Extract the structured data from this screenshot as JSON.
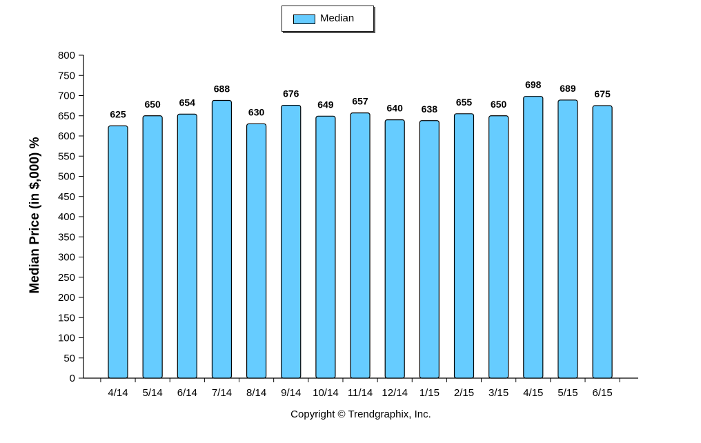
{
  "chart_data": {
    "type": "bar",
    "categories": [
      "4/14",
      "5/14",
      "6/14",
      "7/14",
      "8/14",
      "9/14",
      "10/14",
      "11/14",
      "12/14",
      "1/15",
      "2/15",
      "3/15",
      "4/15",
      "5/15",
      "6/15"
    ],
    "series": [
      {
        "name": "Median",
        "values": [
          625,
          650,
          654,
          688,
          630,
          676,
          649,
          657,
          640,
          638,
          655,
          650,
          698,
          689,
          675
        ]
      }
    ],
    "ylabel": "Median Price (in $,000) %",
    "xlabel": "",
    "ylim": [
      0,
      800
    ],
    "yticks": [
      0,
      50,
      100,
      150,
      200,
      250,
      300,
      350,
      400,
      450,
      500,
      550,
      600,
      650,
      700,
      750,
      800
    ],
    "legend_position": "top-center",
    "grid": false
  },
  "legend": {
    "label": "Median"
  },
  "footer": {
    "copyright": "Copyright © Trendgraphix, Inc."
  },
  "colors": {
    "bar_fill": "#66ccff",
    "bar_stroke": "#000000",
    "axis": "#000000"
  }
}
